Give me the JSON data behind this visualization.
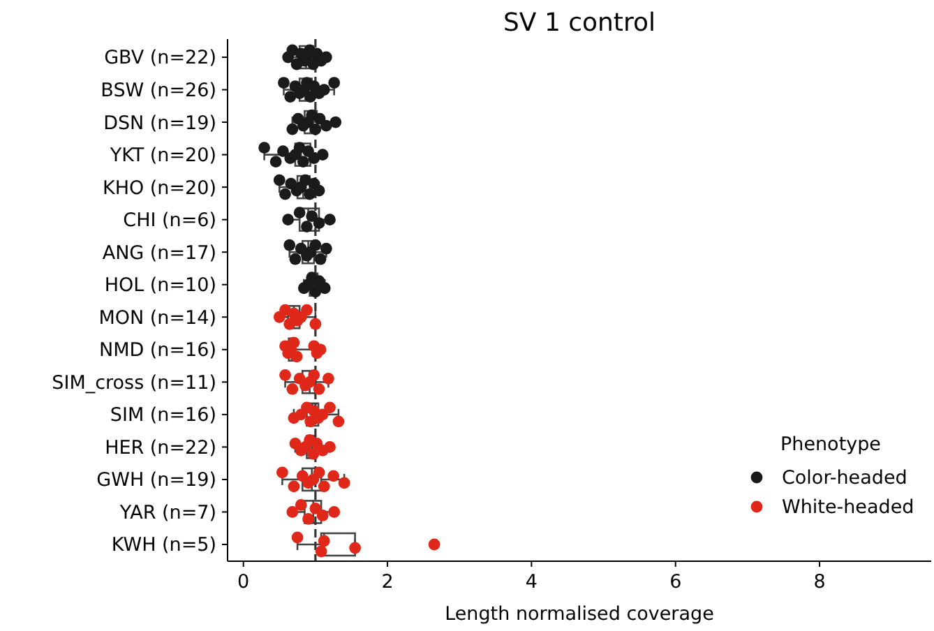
{
  "chart_data": {
    "type": "box",
    "orientation": "horizontal",
    "title": "SV 1 control",
    "xlabel": "Length normalised coverage",
    "categories": [
      "GBV (n=22)",
      "BSW (n=26)",
      "DSN (n=19)",
      "YKT (n=20)",
      "KHO (n=20)",
      "CHI (n=6)",
      "ANG (n=17)",
      "HOL (n=10)",
      "MON (n=14)",
      "NMD (n=16)",
      "SIM_cross (n=11)",
      "SIM (n=16)",
      "HER (n=22)",
      "GWH (n=19)",
      "YAR (n=7)",
      "KWH (n=5)"
    ],
    "boxes": [
      {
        "low": 0.62,
        "q1": 0.78,
        "median": 0.87,
        "q3": 0.97,
        "high": 1.15
      },
      {
        "low": 0.56,
        "q1": 0.78,
        "median": 0.86,
        "q3": 0.95,
        "high": 1.26
      },
      {
        "low": 0.68,
        "q1": 0.85,
        "median": 0.93,
        "q3": 1.02,
        "high": 1.28
      },
      {
        "low": 0.29,
        "q1": 0.72,
        "median": 0.8,
        "q3": 0.93,
        "high": 1.1
      },
      {
        "low": 0.5,
        "q1": 0.75,
        "median": 0.83,
        "q3": 0.92,
        "high": 1.05
      },
      {
        "low": 0.62,
        "q1": 0.78,
        "median": 0.9,
        "q3": 1.05,
        "high": 1.2
      },
      {
        "low": 0.64,
        "q1": 0.82,
        "median": 0.9,
        "q3": 0.98,
        "high": 1.15
      },
      {
        "low": 0.84,
        "q1": 0.92,
        "median": 0.98,
        "q3": 1.03,
        "high": 1.13
      },
      {
        "low": 0.5,
        "q1": 0.62,
        "median": 0.7,
        "q3": 0.78,
        "high": 1.0
      },
      {
        "low": 0.58,
        "q1": 0.63,
        "median": 0.67,
        "q3": 0.72,
        "high": 1.07
      },
      {
        "low": 0.58,
        "q1": 0.82,
        "median": 0.92,
        "q3": 1.0,
        "high": 1.18
      },
      {
        "low": 0.7,
        "q1": 0.88,
        "median": 0.96,
        "q3": 1.04,
        "high": 1.32
      },
      {
        "low": 0.72,
        "q1": 0.88,
        "median": 0.95,
        "q3": 1.0,
        "high": 1.2
      },
      {
        "low": 0.54,
        "q1": 0.82,
        "median": 0.95,
        "q3": 1.08,
        "high": 1.4
      },
      {
        "low": 0.68,
        "q1": 0.85,
        "median": 0.97,
        "q3": 1.08,
        "high": 1.26
      },
      {
        "low": 0.75,
        "q1": 1.08,
        "median": 1.12,
        "q3": 1.55,
        "high": 1.55
      }
    ],
    "series": [
      {
        "name": "Color-headed",
        "type": "scatter",
        "color": "#1a1a1a",
        "x": [
          "GBV (n=22)",
          "GBV (n=22)",
          "GBV (n=22)",
          "GBV (n=22)",
          "GBV (n=22)",
          "GBV (n=22)",
          "GBV (n=22)",
          "GBV (n=22)",
          "GBV (n=22)",
          "GBV (n=22)",
          "GBV (n=22)",
          "BSW (n=26)",
          "BSW (n=26)",
          "BSW (n=26)",
          "BSW (n=26)",
          "BSW (n=26)",
          "BSW (n=26)",
          "BSW (n=26)",
          "BSW (n=26)",
          "BSW (n=26)",
          "BSW (n=26)",
          "BSW (n=26)",
          "DSN (n=19)",
          "DSN (n=19)",
          "DSN (n=19)",
          "DSN (n=19)",
          "DSN (n=19)",
          "DSN (n=19)",
          "DSN (n=19)",
          "DSN (n=19)",
          "DSN (n=19)",
          "YKT (n=20)",
          "YKT (n=20)",
          "YKT (n=20)",
          "YKT (n=20)",
          "YKT (n=20)",
          "YKT (n=20)",
          "YKT (n=20)",
          "YKT (n=20)",
          "YKT (n=20)",
          "YKT (n=20)",
          "KHO (n=20)",
          "KHO (n=20)",
          "KHO (n=20)",
          "KHO (n=20)",
          "KHO (n=20)",
          "KHO (n=20)",
          "KHO (n=20)",
          "KHO (n=20)",
          "KHO (n=20)",
          "CHI (n=6)",
          "CHI (n=6)",
          "CHI (n=6)",
          "CHI (n=6)",
          "CHI (n=6)",
          "CHI (n=6)",
          "ANG (n=17)",
          "ANG (n=17)",
          "ANG (n=17)",
          "ANG (n=17)",
          "ANG (n=17)",
          "ANG (n=17)",
          "ANG (n=17)",
          "ANG (n=17)",
          "HOL (n=10)",
          "HOL (n=10)",
          "HOL (n=10)",
          "HOL (n=10)",
          "HOL (n=10)",
          "HOL (n=10)"
        ],
        "values": [
          0.62,
          0.68,
          0.74,
          0.8,
          0.85,
          0.88,
          0.92,
          0.97,
          1.02,
          1.08,
          1.15,
          0.56,
          0.65,
          0.72,
          0.78,
          0.84,
          0.88,
          0.93,
          0.98,
          1.05,
          1.12,
          1.26,
          0.68,
          0.76,
          0.83,
          0.9,
          0.95,
          1.0,
          1.06,
          1.15,
          1.28,
          0.29,
          0.45,
          0.55,
          0.65,
          0.72,
          0.78,
          0.83,
          0.9,
          0.98,
          1.1,
          0.5,
          0.58,
          0.66,
          0.74,
          0.8,
          0.86,
          0.92,
          0.98,
          1.05,
          0.62,
          0.78,
          0.88,
          0.95,
          1.05,
          1.2,
          0.64,
          0.72,
          0.8,
          0.88,
          0.93,
          1.0,
          1.07,
          1.15,
          0.84,
          0.9,
          0.95,
          1.0,
          1.05,
          1.13
        ]
      },
      {
        "name": "White-headed",
        "type": "scatter",
        "color": "#e0281a",
        "x": [
          "MON (n=14)",
          "MON (n=14)",
          "MON (n=14)",
          "MON (n=14)",
          "MON (n=14)",
          "MON (n=14)",
          "MON (n=14)",
          "MON (n=14)",
          "NMD (n=16)",
          "NMD (n=16)",
          "NMD (n=16)",
          "NMD (n=16)",
          "NMD (n=16)",
          "NMD (n=16)",
          "NMD (n=16)",
          "NMD (n=16)",
          "SIM_cross (n=11)",
          "SIM_cross (n=11)",
          "SIM_cross (n=11)",
          "SIM_cross (n=11)",
          "SIM_cross (n=11)",
          "SIM_cross (n=11)",
          "SIM_cross (n=11)",
          "SIM_cross (n=11)",
          "SIM (n=16)",
          "SIM (n=16)",
          "SIM (n=16)",
          "SIM (n=16)",
          "SIM (n=16)",
          "SIM (n=16)",
          "SIM (n=16)",
          "SIM (n=16)",
          "SIM (n=16)",
          "HER (n=22)",
          "HER (n=22)",
          "HER (n=22)",
          "HER (n=22)",
          "HER (n=22)",
          "HER (n=22)",
          "HER (n=22)",
          "HER (n=22)",
          "GWH (n=19)",
          "GWH (n=19)",
          "GWH (n=19)",
          "GWH (n=19)",
          "GWH (n=19)",
          "GWH (n=19)",
          "GWH (n=19)",
          "GWH (n=19)",
          "GWH (n=19)",
          "YAR (n=7)",
          "YAR (n=7)",
          "YAR (n=7)",
          "YAR (n=7)",
          "YAR (n=7)",
          "YAR (n=7)",
          "KWH (n=5)",
          "KWH (n=5)",
          "KWH (n=5)",
          "KWH (n=5)",
          "KWH (n=5)"
        ],
        "values": [
          0.5,
          0.58,
          0.64,
          0.7,
          0.75,
          0.8,
          0.88,
          1.0,
          0.58,
          0.62,
          0.66,
          0.7,
          0.74,
          0.98,
          1.02,
          1.07,
          0.58,
          0.68,
          0.78,
          0.86,
          0.92,
          0.98,
          1.05,
          1.18,
          0.7,
          0.8,
          0.88,
          0.93,
          0.98,
          1.04,
          1.1,
          1.2,
          1.32,
          0.72,
          0.8,
          0.86,
          0.92,
          0.97,
          1.02,
          1.1,
          1.2,
          0.54,
          0.7,
          0.82,
          0.9,
          0.97,
          1.05,
          1.12,
          1.25,
          1.4,
          0.68,
          0.8,
          0.9,
          1.0,
          1.1,
          1.26,
          0.75,
          1.08,
          1.12,
          1.55,
          2.65
        ]
      }
    ],
    "ref_lines": [
      {
        "axis": "x",
        "value": 1,
        "line_style": "dashed",
        "color": "#333333"
      }
    ],
    "xlim": [
      -0.22,
      9.55
    ],
    "xticks": [
      0,
      2,
      4,
      6,
      8
    ],
    "legend": "right",
    "legend_title": "Phenotype",
    "marker": "circle"
  }
}
